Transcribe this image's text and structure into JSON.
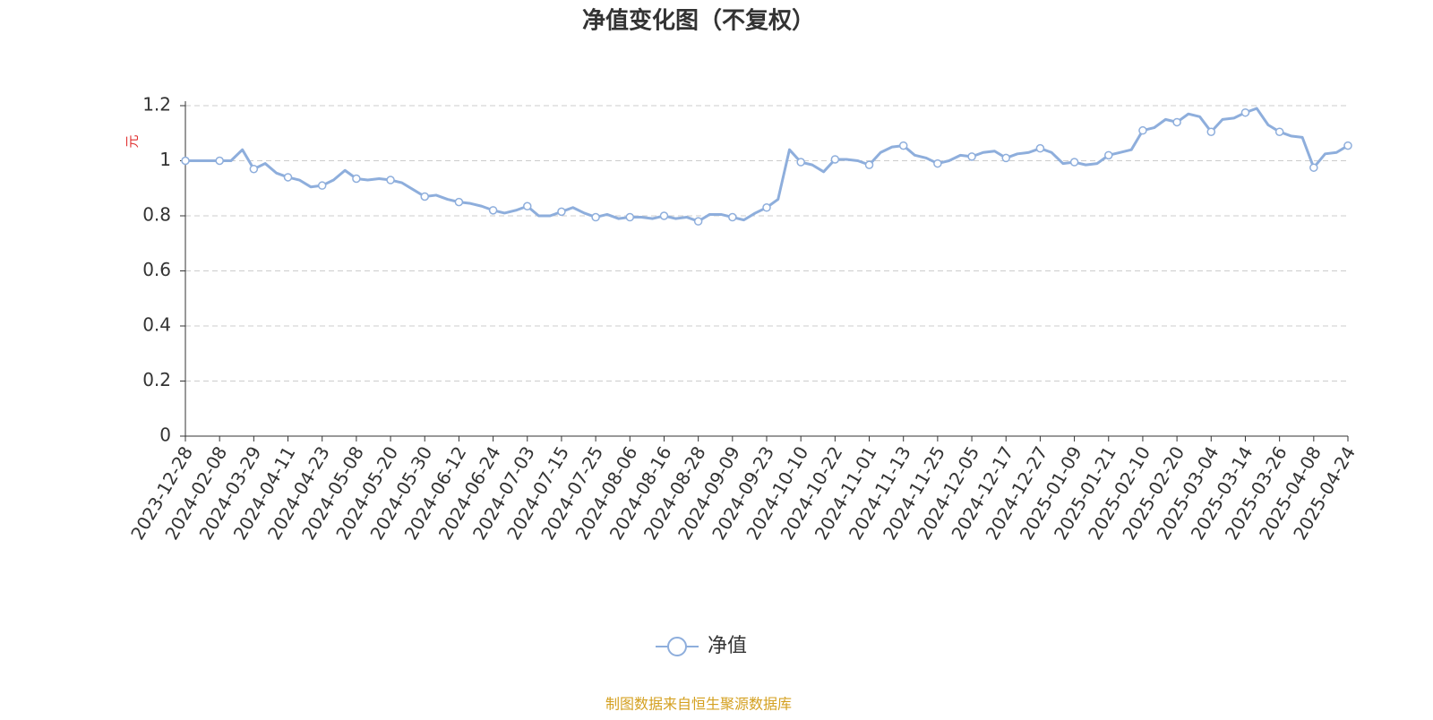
{
  "chart_data": {
    "type": "line",
    "title": "净值变化图（不复权）",
    "y_label": "元",
    "source": "制图数据来自恒生聚源数据库",
    "categories": [
      "2023-12-28",
      null,
      null,
      "2024-02-08",
      null,
      null,
      "2024-03-29",
      null,
      null,
      "2024-04-11",
      null,
      null,
      "2024-04-23",
      null,
      null,
      "2024-05-08",
      null,
      null,
      "2024-05-20",
      null,
      null,
      "2024-05-30",
      null,
      null,
      "2024-06-12",
      null,
      null,
      "2024-06-24",
      null,
      null,
      "2024-07-03",
      null,
      null,
      "2024-07-15",
      null,
      null,
      "2024-07-25",
      null,
      null,
      "2024-08-06",
      null,
      null,
      "2024-08-16",
      null,
      null,
      "2024-08-28",
      null,
      null,
      "2024-09-09",
      null,
      null,
      "2024-09-23",
      null,
      null,
      "2024-10-10",
      null,
      null,
      "2024-10-22",
      null,
      null,
      "2024-11-01",
      null,
      null,
      "2024-11-13",
      null,
      null,
      "2024-11-25",
      null,
      null,
      "2024-12-05",
      null,
      null,
      "2024-12-17",
      null,
      null,
      "2024-12-27",
      null,
      null,
      "2025-01-09",
      null,
      null,
      "2025-01-21",
      null,
      null,
      "2025-02-10",
      null,
      null,
      "2025-02-20",
      null,
      null,
      "2025-03-04",
      null,
      null,
      "2025-03-14",
      null,
      null,
      "2025-03-26",
      null,
      null,
      "2025-04-08",
      null,
      null,
      "2025-04-24"
    ],
    "series": [
      {
        "name": "净值",
        "color": "#8eaedc",
        "values": [
          1.0,
          1.0,
          1.0,
          1.0,
          1.0,
          1.04,
          0.97,
          0.99,
          0.955,
          0.94,
          0.93,
          0.905,
          0.91,
          0.93,
          0.965,
          0.935,
          0.93,
          0.935,
          0.93,
          0.92,
          0.895,
          0.87,
          0.875,
          0.86,
          0.85,
          0.845,
          0.835,
          0.82,
          0.81,
          0.82,
          0.835,
          0.8,
          0.8,
          0.815,
          0.83,
          0.81,
          0.795,
          0.805,
          0.79,
          0.795,
          0.795,
          0.79,
          0.8,
          0.79,
          0.795,
          0.78,
          0.805,
          0.805,
          0.795,
          0.785,
          0.81,
          0.83,
          0.86,
          1.04,
          0.995,
          0.985,
          0.96,
          1.005,
          1.005,
          1.0,
          0.985,
          1.03,
          1.05,
          1.055,
          1.02,
          1.01,
          0.99,
          1.0,
          1.02,
          1.015,
          1.03,
          1.035,
          1.01,
          1.025,
          1.03,
          1.045,
          1.03,
          0.99,
          0.995,
          0.985,
          0.99,
          1.02,
          1.03,
          1.04,
          1.11,
          1.12,
          1.15,
          1.14,
          1.17,
          1.16,
          1.105,
          1.15,
          1.155,
          1.175,
          1.19,
          1.13,
          1.105,
          1.09,
          1.085,
          0.975,
          1.025,
          1.03,
          1.055
        ]
      }
    ],
    "ylim": [
      0,
      1.2
    ],
    "yticks": [
      0,
      0.2,
      0.4,
      0.6,
      0.8,
      1,
      1.2
    ],
    "grid": true
  }
}
